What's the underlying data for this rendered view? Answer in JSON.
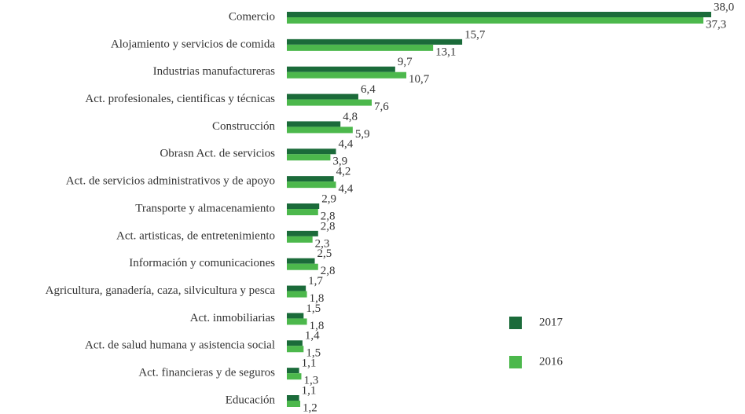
{
  "chart_data": {
    "type": "bar",
    "orientation": "horizontal",
    "categories": [
      "Comercio",
      "Alojamiento y servicios de comida",
      "Industrias manufactureras",
      "Act. profesionales, cientificas y técnicas",
      "Construcción",
      "Obrasn Act. de servicios",
      "Act. de servicios administrativos y de apoyo",
      "Transporte y almacenamiento",
      "Act. artisticas, de entretenimiento",
      "Información y comunicaciones",
      "Agricultura, ganadería, caza, silvicultura y pesca",
      "Act. inmobiliarias",
      "Act. de salud humana y asistencia social",
      "Act. financieras y de seguros",
      "Educación"
    ],
    "series": [
      {
        "name": "2017",
        "color": "#1b6b3a",
        "values": [
          38.0,
          15.7,
          9.7,
          6.4,
          4.8,
          4.4,
          4.2,
          2.9,
          2.8,
          2.5,
          1.7,
          1.5,
          1.4,
          1.1,
          1.1
        ],
        "value_labels": [
          "38,0",
          "15,7",
          "9,7",
          "6,4",
          "4,8",
          "4,4",
          "4,2",
          "2,9",
          "2,8",
          "2,5",
          "1,7",
          "1,5",
          "1,4",
          "1,1",
          "1,1"
        ]
      },
      {
        "name": "2016",
        "color": "#4cb84c",
        "values": [
          37.3,
          13.1,
          10.7,
          7.6,
          5.9,
          3.9,
          4.4,
          2.8,
          2.3,
          2.8,
          1.8,
          1.8,
          1.5,
          1.3,
          1.2
        ],
        "value_labels": [
          "37,3",
          "13,1",
          "10,7",
          "7,6",
          "5,9",
          "3,9",
          "4,4",
          "2,8",
          "2,3",
          "2,8",
          "1,8",
          "1,8",
          "1,5",
          "1,3",
          "1,2"
        ]
      }
    ],
    "legend": "lower right"
  }
}
